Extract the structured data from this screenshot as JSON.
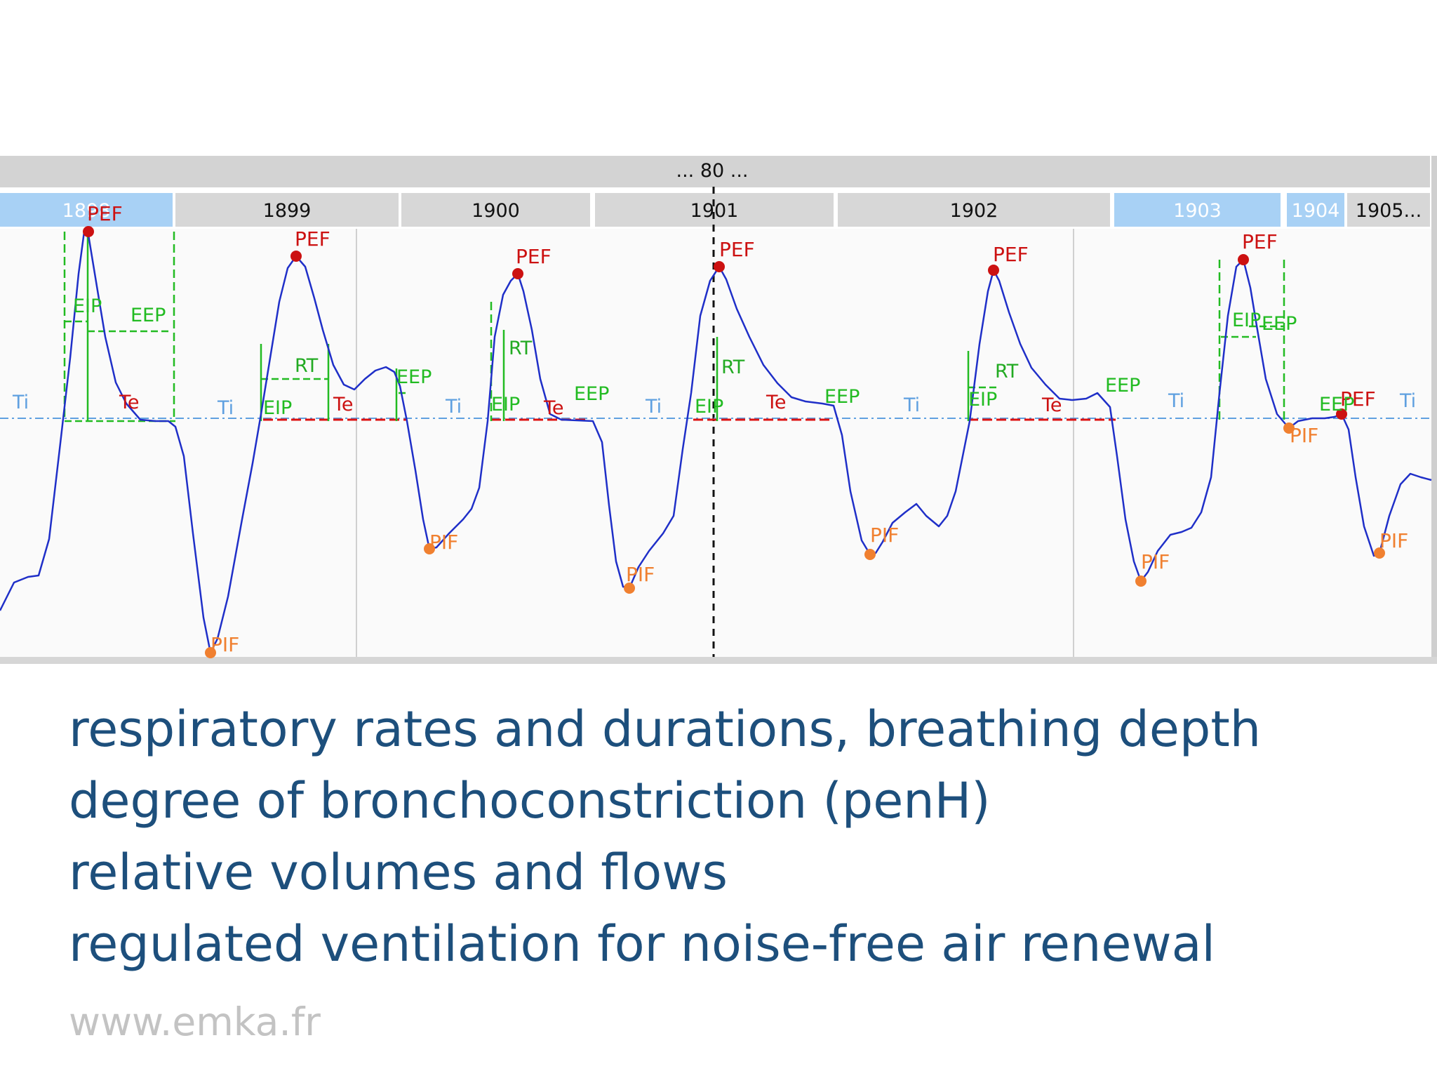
{
  "trace_window": {
    "top_label": "... 80 ...",
    "cycles": [
      {
        "label": "1898",
        "selected": true
      },
      {
        "label": "1899",
        "selected": false
      },
      {
        "label": "1900",
        "selected": false
      },
      {
        "label": "1901",
        "selected": false
      },
      {
        "label": "1902",
        "selected": false
      },
      {
        "label": "1903",
        "selected": true
      },
      {
        "label": "1904",
        "selected": true
      },
      {
        "label": "1905...",
        "selected": false
      }
    ],
    "markers": {
      "peak_expiratory_flow": "PEF",
      "peak_inspiratory_flow": "PIF",
      "inspiration_time": "Ti",
      "expiration_time": "Te",
      "relaxation_time": "RT",
      "end_inspiratory_pause": "EIP",
      "end_expiratory_pause": "EEP"
    },
    "colors": {
      "trace": "#1f2fc8",
      "pef_marker": "#cc1111",
      "pif_marker": "#f08030",
      "green_markers": "#22bb22",
      "baseline": "#5fa0e0",
      "selected_tab": "#a8d1f5",
      "tab": "#d7d7d7"
    }
  },
  "bullets": [
    "respiratory rates and durations, breathing depth",
    "degree of bronchoconstriction (penH)",
    "relative volumes and flows",
    "regulated ventilation for noise-free air renewal"
  ],
  "website": "www.emka.fr"
}
